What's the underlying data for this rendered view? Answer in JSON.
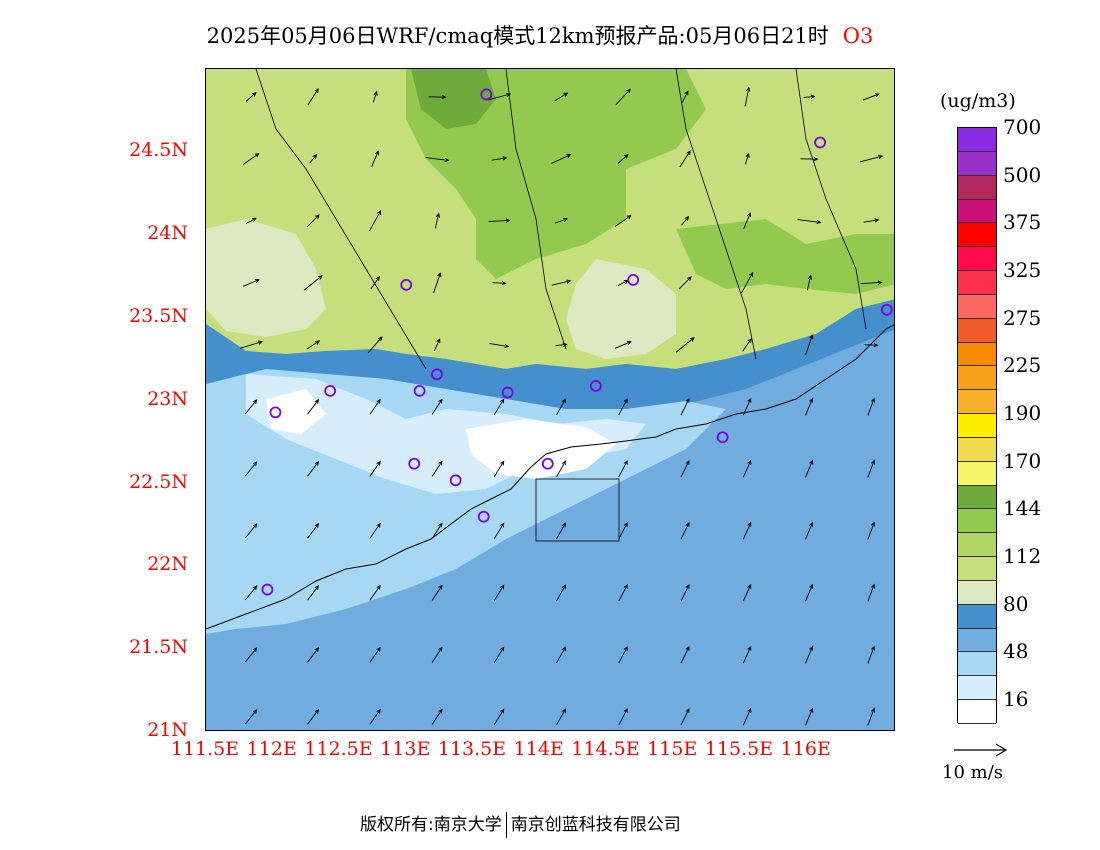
{
  "title": {
    "main": "2025年05月06日WRF/cmaq模式12km预报产品:05月06日21时",
    "species": "O3"
  },
  "map": {
    "lat_labels": [
      "24.5N",
      "24N",
      "23.5N",
      "23N",
      "22.5N",
      "22N",
      "21.5N",
      "21N"
    ],
    "lon_labels": [
      "111.5E",
      "112E",
      "112.5E",
      "113E",
      "113.5E",
      "114E",
      "114.5E",
      "115E",
      "115.5E",
      "116E"
    ],
    "lat_range": [
      21,
      25
    ],
    "lon_range": [
      111.5,
      116.66
    ],
    "colors": {
      "land_light": "#c4df7c",
      "land_mid": "#93c94f",
      "land_dark": "#6fab3a",
      "pale": "#dde9c0",
      "deep_blue": "#448fcc",
      "mid_blue": "#70acdd",
      "light_blue": "#a6d8f4",
      "very_light": "#d6eefb",
      "white": "#ffffff",
      "station_marker": "#8000e0"
    },
    "stations": [
      {
        "lon": 113.6,
        "lat": 24.85
      },
      {
        "lon": 116.1,
        "lat": 24.56
      },
      {
        "lon": 113.0,
        "lat": 23.7
      },
      {
        "lon": 114.7,
        "lat": 23.73
      },
      {
        "lon": 116.6,
        "lat": 23.55
      },
      {
        "lon": 112.43,
        "lat": 23.06
      },
      {
        "lon": 113.23,
        "lat": 23.16
      },
      {
        "lon": 113.1,
        "lat": 23.06
      },
      {
        "lon": 113.76,
        "lat": 23.05
      },
      {
        "lon": 114.42,
        "lat": 23.09
      },
      {
        "lon": 112.02,
        "lat": 22.93
      },
      {
        "lon": 115.37,
        "lat": 22.78
      },
      {
        "lon": 113.06,
        "lat": 22.62
      },
      {
        "lon": 114.06,
        "lat": 22.62
      },
      {
        "lon": 113.37,
        "lat": 22.52
      },
      {
        "lon": 113.58,
        "lat": 22.3
      },
      {
        "lon": 111.96,
        "lat": 21.86
      }
    ]
  },
  "colorbar": {
    "unit": "(ug/m3)",
    "colors": [
      "#ffffff",
      "#d6eefb",
      "#a6d8f4",
      "#70acdd",
      "#448fcc",
      "#dde9c0",
      "#c4df7c",
      "#b0d465",
      "#93c94f",
      "#6fab3a",
      "#f5f569",
      "#f2dc4e",
      "#ffee00",
      "#f8b12c",
      "#f7a11a",
      "#f88a00",
      "#ee5a2a",
      "#ff6666",
      "#ff2f4e",
      "#ff0a4b",
      "#ff0000",
      "#cc107a",
      "#b0285c",
      "#9b30c8",
      "#8a2be2"
    ],
    "tick_labels": [
      "16",
      "48",
      "80",
      "112",
      "144",
      "170",
      "190",
      "225",
      "275",
      "325",
      "375",
      "500",
      "700"
    ]
  },
  "wind_reference": {
    "label": "10 m/s",
    "speed": 10
  },
  "footer": {
    "rights": "版权所有:南京大学",
    "company": "南京创蓝科技有限公司"
  }
}
